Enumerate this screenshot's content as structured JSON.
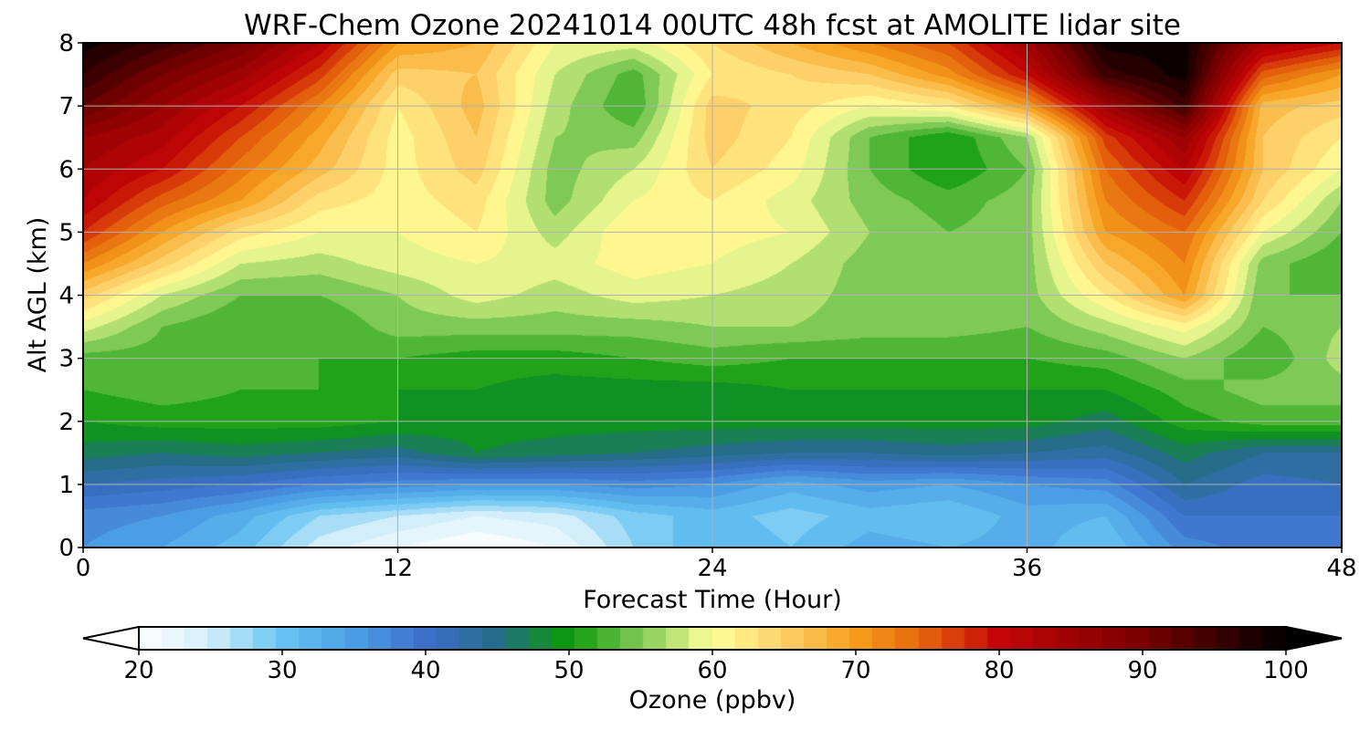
{
  "chart_data": {
    "type": "heatmap",
    "title": "WRF-Chem Ozone  20241014 00UTC 48h fcst at AMOLITE lidar site",
    "xlabel": "Forecast Time (Hour)",
    "ylabel": "Alt AGL (km)",
    "xlim": [
      0,
      48
    ],
    "ylim": [
      0,
      8
    ],
    "xticks": [
      0,
      12,
      24,
      36,
      48
    ],
    "yticks": [
      0,
      1,
      2,
      3,
      4,
      5,
      6,
      7,
      8
    ],
    "grid": true,
    "x": [
      0,
      3,
      6,
      9,
      12,
      15,
      18,
      21,
      24,
      27,
      30,
      33,
      36,
      39,
      42,
      45,
      48
    ],
    "y": [
      0,
      0.5,
      1,
      1.5,
      2,
      2.5,
      3,
      3.5,
      4,
      4.5,
      5,
      5.5,
      6,
      6.5,
      7,
      7.5,
      8
    ],
    "z": [
      [
        36,
        34,
        31,
        25,
        22,
        20,
        22,
        28,
        32,
        30,
        33,
        32,
        33,
        30,
        37,
        39,
        40
      ],
      [
        37,
        36,
        33,
        28,
        26,
        24,
        25,
        29,
        31,
        29,
        31,
        30,
        33,
        32,
        40,
        40,
        40
      ],
      [
        42,
        41,
        40,
        38,
        37,
        36,
        36,
        37,
        36,
        33,
        35,
        34,
        36,
        37,
        44,
        41,
        42
      ],
      [
        47,
        46,
        47,
        46,
        45,
        48,
        47,
        46,
        45,
        44,
        44,
        45,
        44,
        43,
        47,
        44,
        44
      ],
      [
        50,
        51,
        51,
        51,
        50,
        49,
        49,
        49,
        49,
        49,
        49,
        49,
        49,
        47,
        51,
        53,
        53
      ],
      [
        52,
        53,
        52,
        52,
        50,
        50,
        49,
        49,
        49,
        50,
        50,
        50,
        50,
        50,
        53,
        55,
        55
      ],
      [
        53,
        53,
        52,
        52,
        52,
        51,
        51,
        52,
        53,
        52,
        52,
        52,
        52,
        53,
        56,
        52,
        57
      ],
      [
        59,
        54,
        52,
        52,
        55,
        55,
        55,
        55,
        56,
        56,
        55,
        55,
        54,
        57,
        61,
        54,
        56
      ],
      [
        65,
        58,
        54,
        54,
        56,
        59,
        57,
        59,
        58,
        57,
        55,
        55,
        55,
        62,
        70,
        54,
        54
      ],
      [
        72,
        65,
        58,
        57,
        59,
        60,
        59,
        61,
        60,
        58,
        55,
        55,
        55,
        66,
        72,
        55,
        52
      ],
      [
        78,
        70,
        63,
        60,
        60,
        62,
        57,
        62,
        61,
        60,
        56,
        54,
        55,
        70,
        74,
        60,
        54
      ],
      [
        82,
        75,
        70,
        63,
        61,
        63,
        55,
        60,
        62,
        59,
        55,
        53,
        55,
        72,
        78,
        64,
        56
      ],
      [
        84,
        80,
        73,
        67,
        61,
        65,
        55,
        58,
        64,
        61,
        54,
        50,
        54,
        74,
        82,
        66,
        60
      ],
      [
        86,
        83,
        76,
        69,
        61,
        66,
        56,
        55,
        65,
        62,
        54,
        50,
        56,
        77,
        86,
        66,
        62
      ],
      [
        92,
        86,
        80,
        72,
        62,
        67,
        57,
        52,
        65,
        63,
        60,
        62,
        70,
        85,
        95,
        67,
        65
      ],
      [
        96,
        90,
        85,
        77,
        65,
        66,
        58,
        53,
        62,
        64,
        66,
        71,
        80,
        95,
        99,
        75,
        70
      ],
      [
        99,
        95,
        90,
        82,
        70,
        68,
        60,
        59,
        64,
        68,
        72,
        76,
        85,
        99,
        99,
        84,
        80
      ]
    ],
    "colorbar": {
      "label": "Ozone  (ppbv)",
      "min": 20,
      "max": 100,
      "ticks": [
        20,
        30,
        40,
        50,
        60,
        70,
        80,
        90,
        100
      ],
      "extend": "both",
      "stops": [
        [
          20,
          "#ffffff"
        ],
        [
          25,
          "#d2eefa"
        ],
        [
          30,
          "#66c4f2"
        ],
        [
          35,
          "#4c9ee4"
        ],
        [
          40,
          "#3d6fcb"
        ],
        [
          45,
          "#256d88"
        ],
        [
          50,
          "#0a9a0a"
        ],
        [
          55,
          "#7fc956"
        ],
        [
          60,
          "#ffff99"
        ],
        [
          65,
          "#fdd06a"
        ],
        [
          70,
          "#f59e1a"
        ],
        [
          75,
          "#e35f0c"
        ],
        [
          80,
          "#c40606"
        ],
        [
          90,
          "#7a0000"
        ],
        [
          100,
          "#000000"
        ]
      ]
    }
  }
}
